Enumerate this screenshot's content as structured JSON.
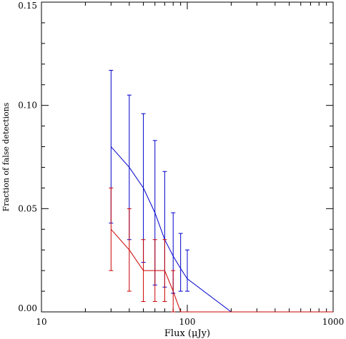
{
  "chart_data": {
    "type": "line",
    "title": "",
    "xlabel": "Flux (μJy)",
    "ylabel": "Fraction of false detections",
    "xscale": "log",
    "xlim": [
      10,
      1000
    ],
    "ylim": [
      0.0,
      0.15
    ],
    "xticks": [
      {
        "value": 10,
        "label": "10"
      },
      {
        "value": 100,
        "label": "100"
      },
      {
        "value": 1000,
        "label": "1000"
      }
    ],
    "yticks": [
      {
        "value": 0.0,
        "label": "0.00"
      },
      {
        "value": 0.05,
        "label": "0.05"
      },
      {
        "value": 0.1,
        "label": "0.10"
      },
      {
        "value": 0.15,
        "label": "0.15"
      }
    ],
    "grid": false,
    "legend": "none",
    "series": [
      {
        "color": "#0000cc",
        "x": [
          30,
          40,
          50,
          60,
          70,
          80,
          90,
          100,
          200,
          1000
        ],
        "y": [
          0.08,
          0.07,
          0.06,
          0.048,
          0.035,
          0.027,
          0.021,
          0.016,
          0.0,
          0.0
        ],
        "errorbars": [
          {
            "x": 30,
            "y": 0.08,
            "lo": 0.043,
            "hi": 0.117
          },
          {
            "x": 40,
            "y": 0.07,
            "lo": 0.035,
            "hi": 0.105
          },
          {
            "x": 50,
            "y": 0.06,
            "lo": 0.024,
            "hi": 0.096
          },
          {
            "x": 60,
            "y": 0.048,
            "lo": 0.013,
            "hi": 0.083
          },
          {
            "x": 70,
            "y": 0.035,
            "lo": 0.012,
            "hi": 0.068
          },
          {
            "x": 80,
            "y": 0.027,
            "lo": 0.009,
            "hi": 0.048
          },
          {
            "x": 90,
            "y": 0.021,
            "lo": 0.01,
            "hi": 0.038
          },
          {
            "x": 100,
            "y": 0.016,
            "lo": 0.01,
            "hi": 0.03
          }
        ]
      },
      {
        "color": "#cc0000",
        "x": [
          30,
          40,
          50,
          60,
          70,
          80,
          90,
          100,
          1000
        ],
        "y": [
          0.04,
          0.03,
          0.02,
          0.02,
          0.02,
          0.01,
          0.0,
          0.0,
          0.0
        ],
        "errorbars": [
          {
            "x": 30,
            "y": 0.04,
            "lo": 0.02,
            "hi": 0.06
          },
          {
            "x": 40,
            "y": 0.03,
            "lo": 0.01,
            "hi": 0.05
          },
          {
            "x": 50,
            "y": 0.02,
            "lo": 0.005,
            "hi": 0.035
          },
          {
            "x": 60,
            "y": 0.02,
            "lo": 0.005,
            "hi": 0.035
          },
          {
            "x": 70,
            "y": 0.02,
            "lo": 0.005,
            "hi": 0.035
          },
          {
            "x": 80,
            "y": 0.01,
            "lo": 0.0,
            "hi": 0.02
          }
        ]
      }
    ]
  }
}
